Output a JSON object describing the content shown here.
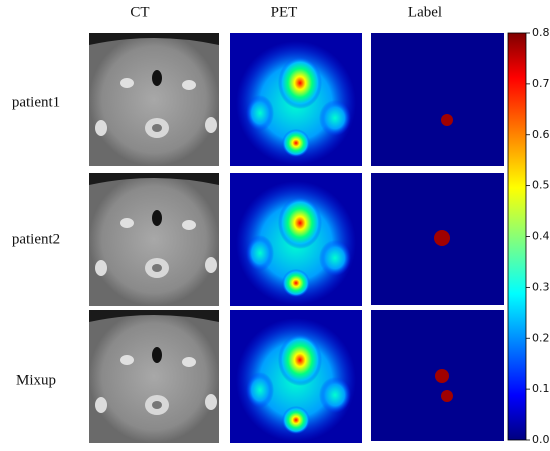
{
  "columns": [
    "CT",
    "PET",
    "Label"
  ],
  "rows": [
    "patient1",
    "patient2",
    "Mixup"
  ],
  "colorbar": {
    "range": [
      0,
      0.8
    ],
    "ticks": [
      {
        "value": 0,
        "label": "0.0"
      },
      0.1,
      0.2,
      0.3,
      0.4,
      0.5,
      0.6,
      0.7,
      0.8
    ]
  }
}
